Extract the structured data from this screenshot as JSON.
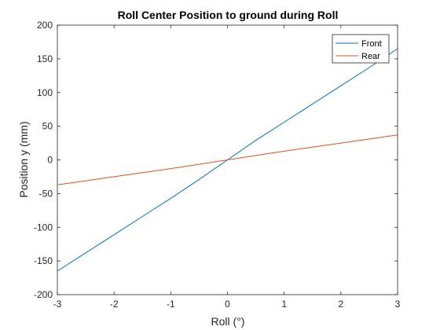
{
  "chart_data": {
    "type": "line",
    "title": "Roll Center Position to ground during Roll",
    "xlabel": "Roll (°)",
    "ylabel": "Position y (mm)",
    "xlim": [
      -3,
      3
    ],
    "ylim": [
      -200,
      200
    ],
    "xticks": [
      -3,
      -2,
      -1,
      0,
      1,
      2,
      3
    ],
    "yticks": [
      -200,
      -150,
      -100,
      -50,
      0,
      50,
      100,
      150,
      200
    ],
    "grid": false,
    "legend_position": "top-right",
    "series": [
      {
        "name": "Front",
        "color": "#0072BD",
        "x": [
          -3,
          -2.5,
          -2,
          -1.5,
          -1,
          -0.5,
          0,
          0.5,
          1,
          1.5,
          2,
          2.5,
          3
        ],
        "y": [
          -165,
          -138,
          -111,
          -84,
          -57,
          -29,
          0,
          29,
          56,
          83,
          110,
          137,
          165
        ]
      },
      {
        "name": "Rear",
        "color": "#D95319",
        "x": [
          -3,
          -2.5,
          -2,
          -1.5,
          -1,
          -0.5,
          0,
          0.5,
          1,
          1.5,
          2,
          2.5,
          3
        ],
        "y": [
          -37,
          -31,
          -25,
          -19,
          -13,
          -6.5,
          0,
          6.5,
          13,
          19,
          25,
          31,
          37
        ]
      }
    ]
  }
}
